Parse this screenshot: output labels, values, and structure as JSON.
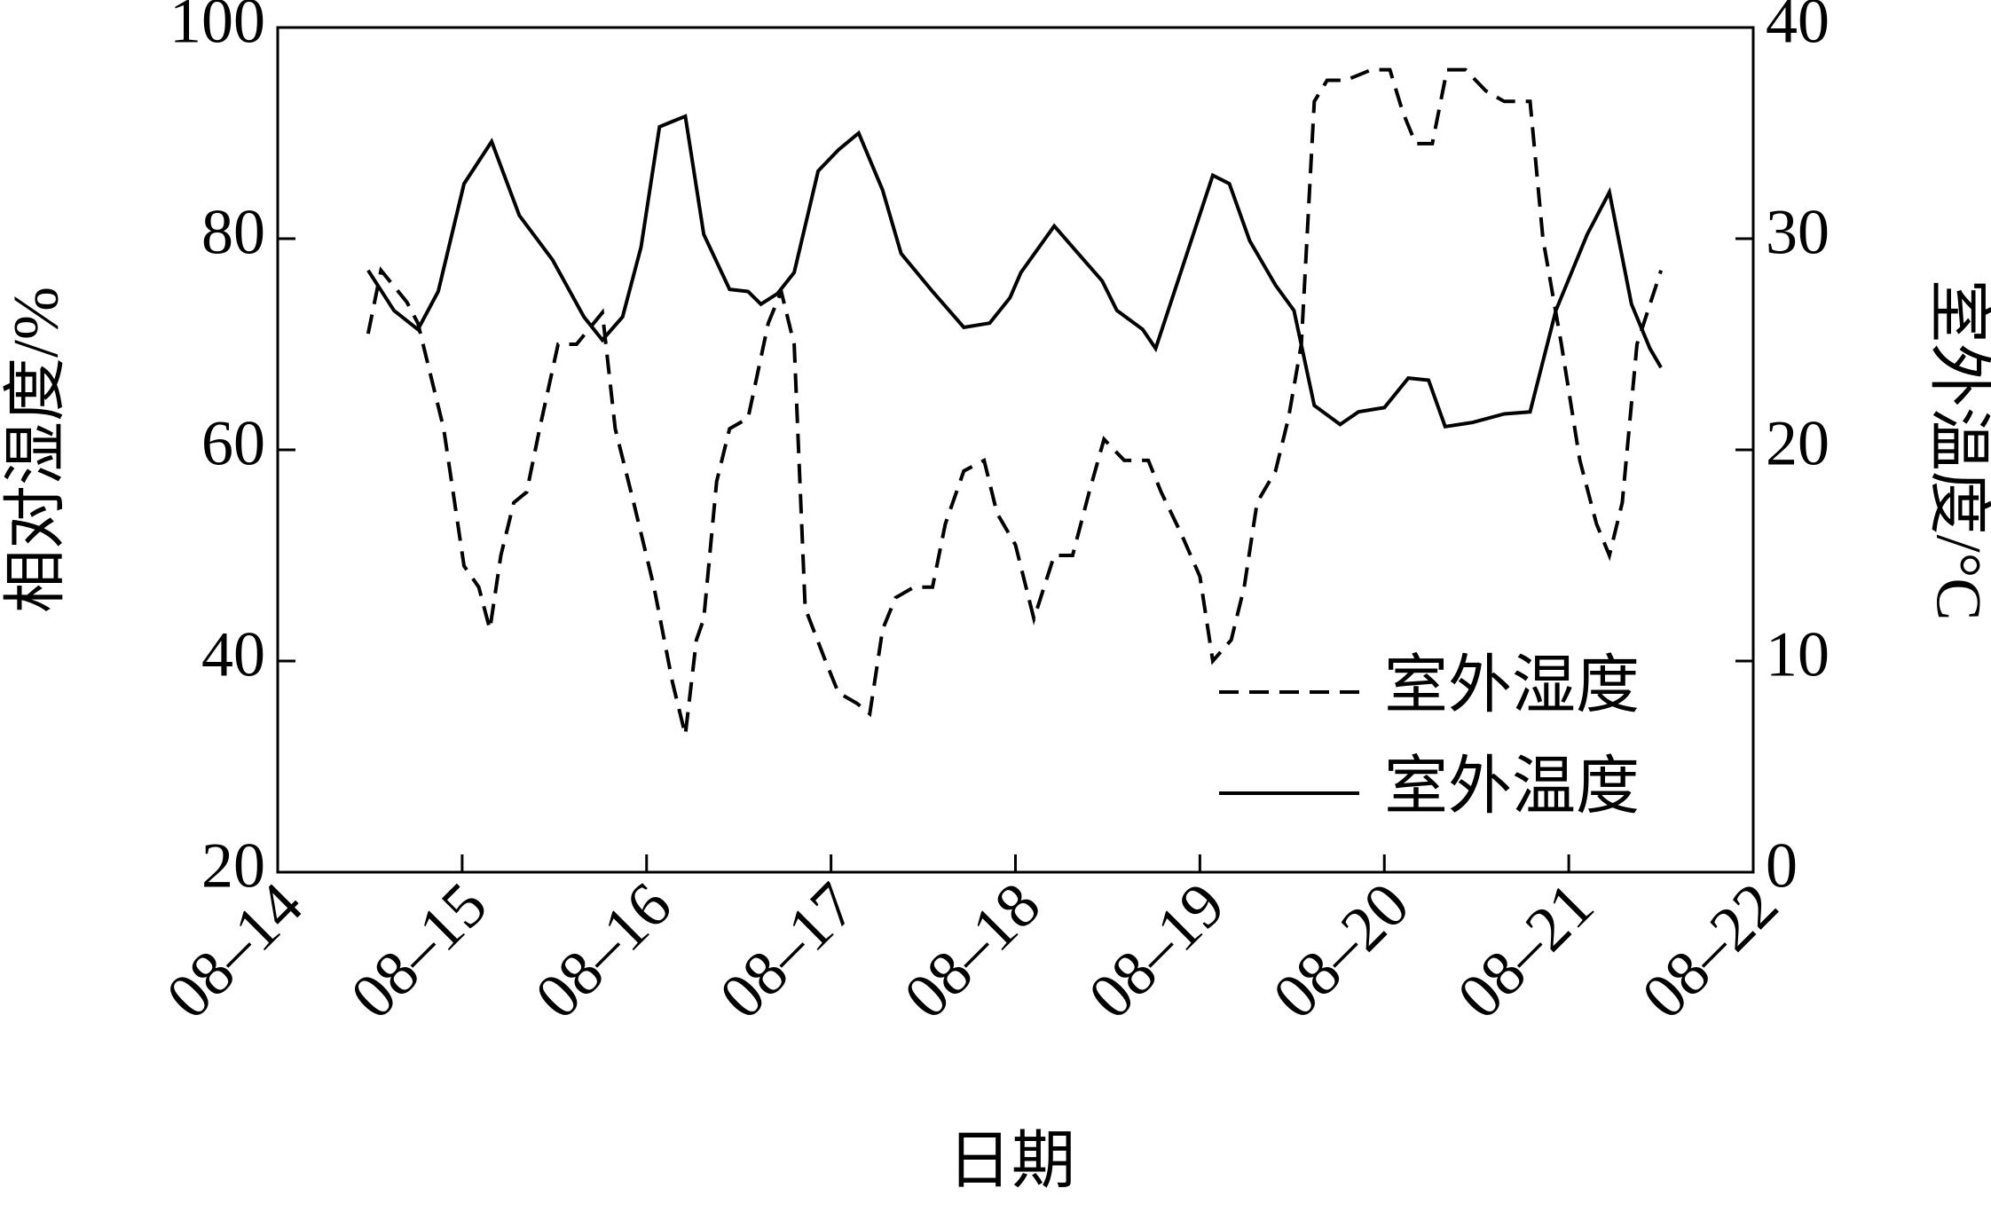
{
  "chart_data": {
    "type": "line",
    "x_label": "日期",
    "y_label": "相对湿度/%",
    "y2_label": "室外温度/°C",
    "xlim": [
      14,
      22
    ],
    "xticks": [
      {
        "value": 14,
        "label": "08–14"
      },
      {
        "value": 15,
        "label": "08–15"
      },
      {
        "value": 16,
        "label": "08–16"
      },
      {
        "value": 17,
        "label": "08–17"
      },
      {
        "value": 18,
        "label": "08–18"
      },
      {
        "value": 19,
        "label": "08–19"
      },
      {
        "value": 20,
        "label": "08–20"
      },
      {
        "value": 21,
        "label": "08–21"
      },
      {
        "value": 22,
        "label": "08–22"
      }
    ],
    "ylim": [
      20,
      100
    ],
    "yticks": [
      20,
      40,
      60,
      80,
      100
    ],
    "y2lim": [
      0,
      40
    ],
    "y2ticks": [
      0,
      10,
      20,
      30,
      40
    ],
    "legend": "lower right",
    "series": [
      {
        "name": "室外湿度",
        "color": "#000000",
        "dash": true,
        "x": [
          14.49,
          14.56,
          14.7,
          14.76,
          14.9,
          15.01,
          15.09,
          15.15,
          15.21,
          15.28,
          15.35,
          15.42,
          15.52,
          15.62,
          15.76,
          15.83,
          15.93,
          16.04,
          16.14,
          16.21,
          16.27,
          16.31,
          16.38,
          16.45,
          16.55,
          16.66,
          16.73,
          16.8,
          16.86,
          16.97,
          17.04,
          17.14,
          17.21,
          17.28,
          17.35,
          17.45,
          17.55,
          17.62,
          17.72,
          17.83,
          17.9,
          18.0,
          18.1,
          18.21,
          18.31,
          18.4,
          18.48,
          18.59,
          18.72,
          18.79,
          18.9,
          19.0,
          19.07,
          19.17,
          19.24,
          19.31,
          19.41,
          19.48,
          19.55,
          19.62,
          19.69,
          19.79,
          19.93,
          20.03,
          20.1,
          20.17,
          20.26,
          20.34,
          20.44,
          20.55,
          20.65,
          20.79,
          20.86,
          20.96,
          21.06,
          21.15,
          21.22,
          21.29,
          21.37,
          21.5
        ],
        "values": [
          71,
          77,
          74,
          72,
          62,
          49,
          47,
          43,
          50,
          55,
          56,
          62,
          70,
          70,
          73,
          62,
          55,
          47,
          38,
          33,
          42,
          44,
          57,
          62,
          63,
          72,
          75,
          70,
          45,
          40,
          37,
          36,
          35,
          43,
          46,
          47,
          47,
          53,
          58,
          59,
          54,
          51,
          44,
          50,
          50,
          56,
          61,
          59,
          59,
          56,
          52,
          48,
          40,
          42,
          47,
          55,
          58,
          63,
          70,
          93,
          95,
          95,
          96,
          96,
          92,
          89,
          89,
          96,
          96,
          94,
          93,
          93,
          80,
          70,
          59,
          53,
          50,
          55,
          70,
          77
        ]
      },
      {
        "name": "室外温度",
        "color": "#000000",
        "dash": false,
        "axis": "y2",
        "x": [
          14.49,
          14.63,
          14.76,
          14.87,
          15.01,
          15.16,
          15.31,
          15.49,
          15.66,
          15.76,
          15.87,
          15.97,
          16.07,
          16.21,
          16.31,
          16.45,
          16.55,
          16.62,
          16.71,
          16.8,
          16.93,
          17.04,
          17.15,
          17.28,
          17.38,
          17.55,
          17.72,
          17.86,
          17.97,
          18.03,
          18.21,
          18.34,
          18.47,
          18.55,
          18.69,
          18.76,
          18.93,
          19.07,
          19.16,
          19.27,
          19.41,
          19.51,
          19.62,
          19.76,
          19.86,
          20.0,
          20.13,
          20.24,
          20.33,
          20.48,
          20.65,
          20.79,
          20.93,
          21.1,
          21.22,
          21.34,
          21.44,
          21.5
        ],
        "values": [
          28.5,
          26.6,
          25.7,
          27.5,
          32.6,
          34.6,
          31.1,
          29.0,
          26.3,
          25.2,
          26.3,
          29.6,
          35.3,
          35.8,
          30.2,
          27.6,
          27.5,
          26.9,
          27.4,
          28.4,
          33.2,
          34.2,
          35.0,
          32.3,
          29.3,
          27.5,
          25.8,
          26.0,
          27.2,
          28.4,
          30.6,
          29.3,
          28.0,
          26.6,
          25.7,
          24.8,
          29.3,
          33.0,
          32.6,
          29.9,
          27.8,
          26.6,
          22.1,
          21.2,
          21.8,
          22.0,
          23.4,
          23.3,
          21.1,
          21.3,
          21.7,
          21.8,
          26.6,
          30.2,
          32.2,
          26.9,
          24.8,
          23.9
        ]
      }
    ]
  }
}
